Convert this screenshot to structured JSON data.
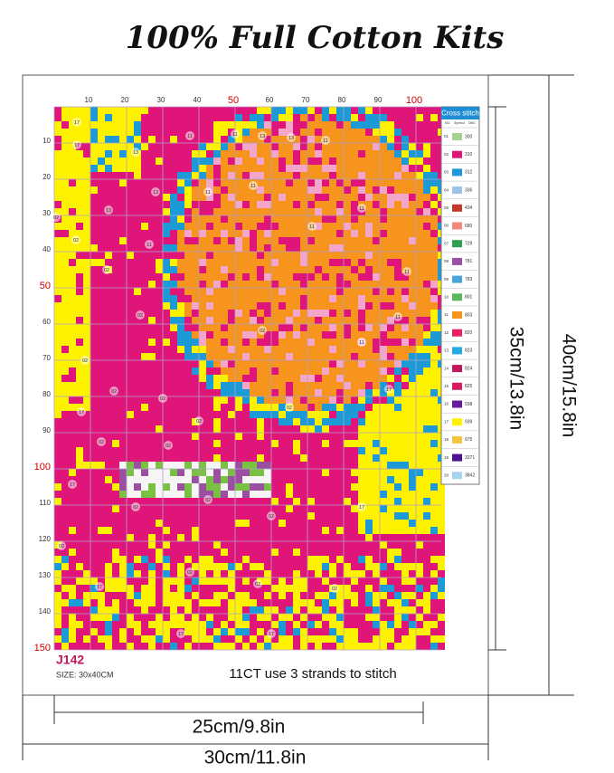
{
  "header": {
    "title": "100% Full Cotton Kits"
  },
  "pattern": {
    "top_ruler": [
      "10",
      "20",
      "30",
      "40",
      "50",
      "60",
      "70",
      "80",
      "90",
      "100"
    ],
    "left_ruler": [
      "10",
      "20",
      "30",
      "40",
      "50",
      "60",
      "70",
      "80",
      "90",
      "100",
      "110",
      "120",
      "130",
      "140",
      "150"
    ],
    "symbols": [
      "17",
      "02",
      "13",
      "11"
    ]
  },
  "legend": {
    "title": "Cross stitch",
    "columns": [
      "NO.",
      "Symbol",
      "DMC"
    ],
    "rows": [
      [
        "01",
        "300"
      ],
      [
        "02",
        "310"
      ],
      [
        "03",
        "312"
      ],
      [
        "04",
        "336"
      ],
      [
        "05",
        "434"
      ],
      [
        "06",
        "680"
      ],
      [
        "07",
        "729"
      ],
      [
        "08",
        "781"
      ],
      [
        "09",
        "783"
      ],
      [
        "10",
        "801"
      ],
      [
        "11",
        "803"
      ],
      [
        "12",
        "820"
      ],
      [
        "13",
        "823"
      ],
      [
        "14",
        "824"
      ],
      [
        "15",
        "825"
      ],
      [
        "16",
        "938"
      ],
      [
        "17",
        "939"
      ],
      [
        "18",
        "975"
      ],
      [
        "19",
        "3371"
      ],
      [
        "20",
        "3842"
      ]
    ]
  },
  "footer": {
    "code": "J142",
    "size": "SIZE:  30x40CM",
    "note": "11CT use 3 strands to stitch"
  },
  "dimensions": {
    "inner_width": "25cm/9.8in",
    "outer_width": "30cm/11.8in",
    "inner_height": "35cm/13.8in",
    "outer_height": "40cm/15.8in"
  }
}
